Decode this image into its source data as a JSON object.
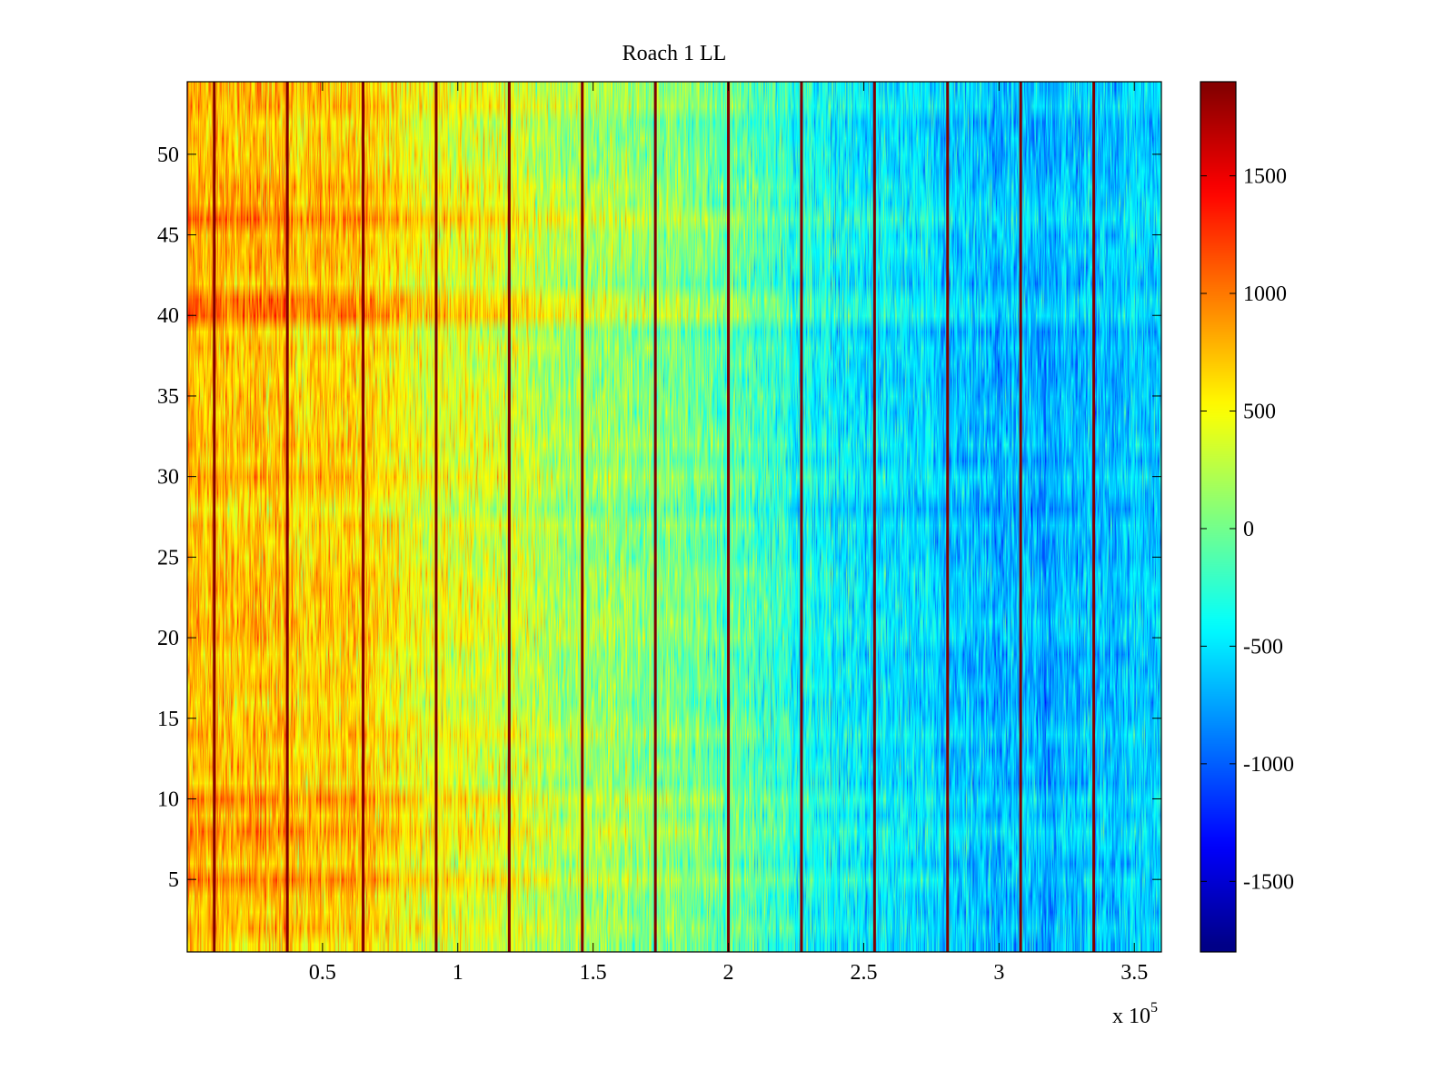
{
  "chart_data": {
    "type": "heatmap",
    "title": "Roach 1 LL",
    "xlabel": "",
    "ylabel": "",
    "x_exponent_label": "x 10",
    "x_exponent_power": "5",
    "xlim": [
      0,
      3.6
    ],
    "ylim": [
      0.5,
      54.5
    ],
    "rows": 54,
    "x_ticks": [
      {
        "value": 0.5,
        "label": "0.5"
      },
      {
        "value": 1,
        "label": "1"
      },
      {
        "value": 1.5,
        "label": "1.5"
      },
      {
        "value": 2,
        "label": "2"
      },
      {
        "value": 2.5,
        "label": "2.5"
      },
      {
        "value": 3,
        "label": "3"
      },
      {
        "value": 3.5,
        "label": "3.5"
      }
    ],
    "y_ticks": [
      {
        "value": 5,
        "label": "5"
      },
      {
        "value": 10,
        "label": "10"
      },
      {
        "value": 15,
        "label": "15"
      },
      {
        "value": 20,
        "label": "20"
      },
      {
        "value": 25,
        "label": "25"
      },
      {
        "value": 30,
        "label": "30"
      },
      {
        "value": 35,
        "label": "35"
      },
      {
        "value": 40,
        "label": "40"
      },
      {
        "value": 45,
        "label": "45"
      },
      {
        "value": 50,
        "label": "50"
      }
    ],
    "colorbar": {
      "colormap": "jet",
      "clim": [
        -1800,
        1900
      ],
      "ticks": [
        {
          "value": 1500,
          "label": "1500"
        },
        {
          "value": 1000,
          "label": "1000"
        },
        {
          "value": 500,
          "label": "500"
        },
        {
          "value": 0,
          "label": "0"
        },
        {
          "value": -500,
          "label": "-500"
        },
        {
          "value": -1000,
          "label": "-1000"
        },
        {
          "value": -1500,
          "label": "-1500"
        }
      ]
    },
    "column_trend": {
      "x": [
        0,
        0.3,
        0.6,
        0.9,
        1.2,
        1.5,
        1.8,
        2.1,
        2.4,
        2.7,
        3.0,
        3.3,
        3.6
      ],
      "mean_value": [
        750,
        720,
        680,
        450,
        350,
        150,
        50,
        -150,
        -450,
        -550,
        -700,
        -650,
        -550
      ]
    },
    "row_offsets": [
      {
        "row": 5,
        "offset": 300
      },
      {
        "row": 8,
        "offset": 200
      },
      {
        "row": 10,
        "offset": 250
      },
      {
        "row": 40,
        "offset": 450
      },
      {
        "row": 41,
        "offset": 400
      },
      {
        "row": 46,
        "offset": 300
      },
      {
        "row": 48,
        "offset": 150
      },
      {
        "row": 28,
        "offset": -100
      },
      {
        "row": 1,
        "offset": -150
      }
    ],
    "vertical_lines": [
      {
        "x": 0.1,
        "value": 1900
      },
      {
        "x": 0.37,
        "value": 1900
      },
      {
        "x": 0.65,
        "value": 1900
      },
      {
        "x": 0.92,
        "value": 1900
      },
      {
        "x": 1.19,
        "value": 1900
      },
      {
        "x": 1.46,
        "value": 1900
      },
      {
        "x": 1.73,
        "value": 1900
      },
      {
        "x": 2.0,
        "value": 1900
      },
      {
        "x": 2.27,
        "value": 1900
      },
      {
        "x": 2.54,
        "value": 1900
      },
      {
        "x": 2.81,
        "value": 1900
      },
      {
        "x": 3.08,
        "value": 1900
      },
      {
        "x": 3.35,
        "value": 1900
      }
    ],
    "grid": false
  }
}
